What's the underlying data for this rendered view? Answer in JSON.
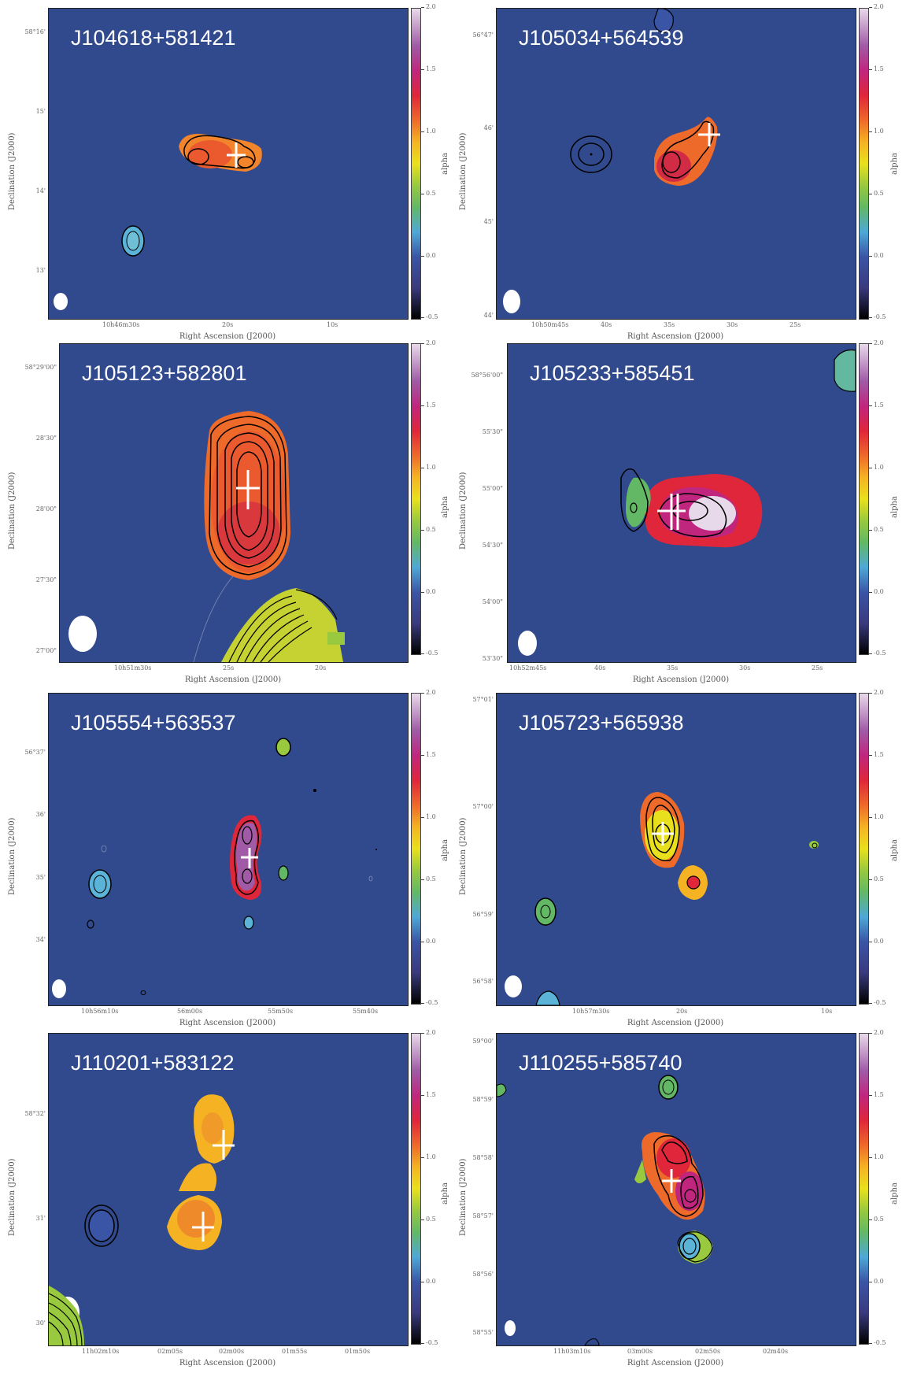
{
  "colorbar": {
    "label": "alpha",
    "ticks": [
      "2.0",
      "1.5",
      "1.0",
      "0.5",
      "0.0",
      "-0.5"
    ]
  },
  "axes": {
    "xlabel": "Right Ascension (J2000)",
    "ylabel": "Declination (J2000)"
  },
  "panels": [
    {
      "name": "J104618+581421",
      "yticks": [
        "58°16'",
        "15'",
        "14'",
        "13'"
      ],
      "xticks": [
        "10h46m30s",
        "20s",
        "10s"
      ]
    },
    {
      "name": "J105034+564539",
      "yticks": [
        "56°47'",
        "46'",
        "45'",
        "44'"
      ],
      "xticks": [
        "10h50m45s",
        "40s",
        "35s",
        "30s",
        "25s"
      ]
    },
    {
      "name": "J105123+582801",
      "yticks": [
        "58°29'00\"",
        "28'30\"",
        "28'00\"",
        "27'30\"",
        "27'00\""
      ],
      "xticks": [
        "10h51m30s",
        "25s",
        "20s"
      ]
    },
    {
      "name": "J105233+585451",
      "yticks": [
        "58°56'00\"",
        "55'30\"",
        "55'00\"",
        "54'30\"",
        "54'00\"",
        "53'30\""
      ],
      "xticks": [
        "10h52m45s",
        "40s",
        "35s",
        "30s",
        "25s"
      ]
    },
    {
      "name": "J105554+563537",
      "yticks": [
        "56°37'",
        "36'",
        "35'",
        "34'"
      ],
      "xticks": [
        "10h56m10s",
        "56m00s",
        "55m50s",
        "55m40s"
      ]
    },
    {
      "name": "J105723+565938",
      "yticks": [
        "57°01'",
        "57°00'",
        "56°59'",
        "56°58'"
      ],
      "xticks": [
        "10h57m30s",
        "20s",
        "10s"
      ]
    },
    {
      "name": "J110201+583122",
      "yticks": [
        "58°32'",
        "31'",
        "30'"
      ],
      "xticks": [
        "11h02m10s",
        "02m05s",
        "02m00s",
        "01m55s",
        "01m50s"
      ]
    },
    {
      "name": "J110255+585740",
      "yticks": [
        "59°00'",
        "58°59'",
        "58°58'",
        "58°57'",
        "58°56'",
        "58°55'"
      ],
      "xticks": [
        "11h03m10s",
        "03m00s",
        "02m50s",
        "02m40s"
      ]
    }
  ]
}
